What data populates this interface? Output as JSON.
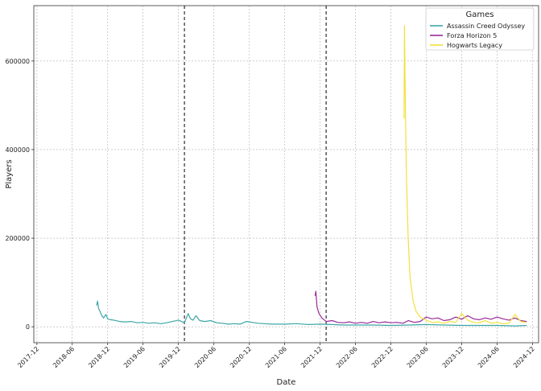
{
  "chart_data": {
    "type": "line",
    "title": "",
    "xlabel": "Date",
    "ylabel": "Players",
    "xlim": [
      "2017-11-15",
      "2025-01-01"
    ],
    "ylim": [
      -36000,
      725000
    ],
    "grid": true,
    "x_ticks": [
      "2017-12",
      "2018-06",
      "2018-12",
      "2019-06",
      "2019-12",
      "2020-06",
      "2020-12",
      "2021-06",
      "2021-12",
      "2022-06",
      "2022-12",
      "2023-06",
      "2023-12",
      "2024-06",
      "2024-12"
    ],
    "y_ticks": [
      0,
      200000,
      400000,
      600000
    ],
    "vertical_lines": [
      "2020-01-01",
      "2022-01-01"
    ],
    "legend": {
      "title": "Games",
      "position": "top-right"
    },
    "series": [
      {
        "name": "Assassin Creed Odyssey",
        "color": "#3ea6a6",
        "points": [
          [
            "2018-10-05",
            48000
          ],
          [
            "2018-10-10",
            58000
          ],
          [
            "2018-10-15",
            42000
          ],
          [
            "2018-10-22",
            35000
          ],
          [
            "2018-11-01",
            25000
          ],
          [
            "2018-11-10",
            20000
          ],
          [
            "2018-11-22",
            28000
          ],
          [
            "2018-12-01",
            18000
          ],
          [
            "2018-12-15",
            16000
          ],
          [
            "2019-01-01",
            15000
          ],
          [
            "2019-02-01",
            12000
          ],
          [
            "2019-03-01",
            11000
          ],
          [
            "2019-04-01",
            12000
          ],
          [
            "2019-05-01",
            9000
          ],
          [
            "2019-06-01",
            10000
          ],
          [
            "2019-07-01",
            8000
          ],
          [
            "2019-08-01",
            9000
          ],
          [
            "2019-09-01",
            7000
          ],
          [
            "2019-10-01",
            9000
          ],
          [
            "2019-11-01",
            12000
          ],
          [
            "2019-12-01",
            15000
          ],
          [
            "2020-01-01",
            9000
          ],
          [
            "2020-01-20",
            30000
          ],
          [
            "2020-02-01",
            18000
          ],
          [
            "2020-02-15",
            15000
          ],
          [
            "2020-03-01",
            25000
          ],
          [
            "2020-03-20",
            14000
          ],
          [
            "2020-04-15",
            12000
          ],
          [
            "2020-05-15",
            14000
          ],
          [
            "2020-06-15",
            9000
          ],
          [
            "2020-07-15",
            8000
          ],
          [
            "2020-08-15",
            6000
          ],
          [
            "2020-09-15",
            7000
          ],
          [
            "2020-10-15",
            6000
          ],
          [
            "2020-11-15",
            12000
          ],
          [
            "2020-12-15",
            10000
          ],
          [
            "2021-01-15",
            8000
          ],
          [
            "2021-02-15",
            7000
          ],
          [
            "2021-04-01",
            6000
          ],
          [
            "2021-06-01",
            6000
          ],
          [
            "2021-08-01",
            7000
          ],
          [
            "2021-10-01",
            5000
          ],
          [
            "2021-12-01",
            6000
          ],
          [
            "2022-02-01",
            5000
          ],
          [
            "2022-04-01",
            4000
          ],
          [
            "2022-06-01",
            4000
          ],
          [
            "2022-09-01",
            4000
          ],
          [
            "2022-12-01",
            3000
          ],
          [
            "2023-03-01",
            4000
          ],
          [
            "2023-06-01",
            5000
          ],
          [
            "2023-09-01",
            4000
          ],
          [
            "2023-12-01",
            3000
          ],
          [
            "2024-03-01",
            3000
          ],
          [
            "2024-06-01",
            3000
          ],
          [
            "2024-09-01",
            2000
          ],
          [
            "2024-11-01",
            3000
          ]
        ]
      },
      {
        "name": "Forza Horizon 5",
        "color": "#9a2a9a",
        "points": [
          [
            "2021-11-05",
            70000
          ],
          [
            "2021-11-09",
            80000
          ],
          [
            "2021-11-15",
            45000
          ],
          [
            "2021-11-25",
            30000
          ],
          [
            "2021-12-10",
            20000
          ],
          [
            "2022-01-01",
            12000
          ],
          [
            "2022-02-01",
            14000
          ],
          [
            "2022-03-01",
            10000
          ],
          [
            "2022-04-01",
            9000
          ],
          [
            "2022-05-01",
            11000
          ],
          [
            "2022-06-01",
            8000
          ],
          [
            "2022-07-01",
            10000
          ],
          [
            "2022-08-01",
            8000
          ],
          [
            "2022-09-01",
            12000
          ],
          [
            "2022-10-01",
            9000
          ],
          [
            "2022-11-01",
            11000
          ],
          [
            "2022-12-01",
            9000
          ],
          [
            "2023-01-01",
            10000
          ],
          [
            "2023-02-01",
            8000
          ],
          [
            "2023-03-01",
            14000
          ],
          [
            "2023-04-01",
            10000
          ],
          [
            "2023-05-01",
            12000
          ],
          [
            "2023-06-01",
            22000
          ],
          [
            "2023-07-01",
            18000
          ],
          [
            "2023-08-01",
            20000
          ],
          [
            "2023-09-01",
            14000
          ],
          [
            "2023-10-01",
            16000
          ],
          [
            "2023-11-01",
            22000
          ],
          [
            "2023-12-01",
            17000
          ],
          [
            "2024-01-01",
            25000
          ],
          [
            "2024-02-01",
            18000
          ],
          [
            "2024-03-01",
            16000
          ],
          [
            "2024-04-01",
            20000
          ],
          [
            "2024-05-01",
            17000
          ],
          [
            "2024-06-01",
            22000
          ],
          [
            "2024-07-01",
            18000
          ],
          [
            "2024-08-01",
            15000
          ],
          [
            "2024-09-01",
            20000
          ],
          [
            "2024-10-01",
            14000
          ],
          [
            "2024-11-01",
            12000
          ]
        ]
      },
      {
        "name": "Hogwarts Legacy",
        "color": "#f2e13a",
        "points": [
          [
            "2023-02-07",
            470000
          ],
          [
            "2023-02-09",
            680000
          ],
          [
            "2023-02-12",
            560000
          ],
          [
            "2023-02-15",
            460000
          ],
          [
            "2023-02-20",
            330000
          ],
          [
            "2023-02-28",
            200000
          ],
          [
            "2023-03-10",
            110000
          ],
          [
            "2023-03-25",
            60000
          ],
          [
            "2023-04-10",
            35000
          ],
          [
            "2023-05-01",
            22000
          ],
          [
            "2023-06-01",
            15000
          ],
          [
            "2023-07-01",
            10000
          ],
          [
            "2023-08-01",
            11000
          ],
          [
            "2023-09-01",
            8000
          ],
          [
            "2023-10-01",
            12000
          ],
          [
            "2023-11-01",
            10000
          ],
          [
            "2023-12-01",
            30000
          ],
          [
            "2024-01-01",
            15000
          ],
          [
            "2024-02-01",
            10000
          ],
          [
            "2024-03-01",
            9000
          ],
          [
            "2024-04-01",
            14000
          ],
          [
            "2024-05-01",
            8000
          ],
          [
            "2024-06-01",
            10000
          ],
          [
            "2024-07-01",
            7000
          ],
          [
            "2024-08-01",
            8000
          ],
          [
            "2024-09-01",
            28000
          ],
          [
            "2024-10-01",
            12000
          ],
          [
            "2024-11-01",
            10000
          ]
        ]
      }
    ]
  }
}
